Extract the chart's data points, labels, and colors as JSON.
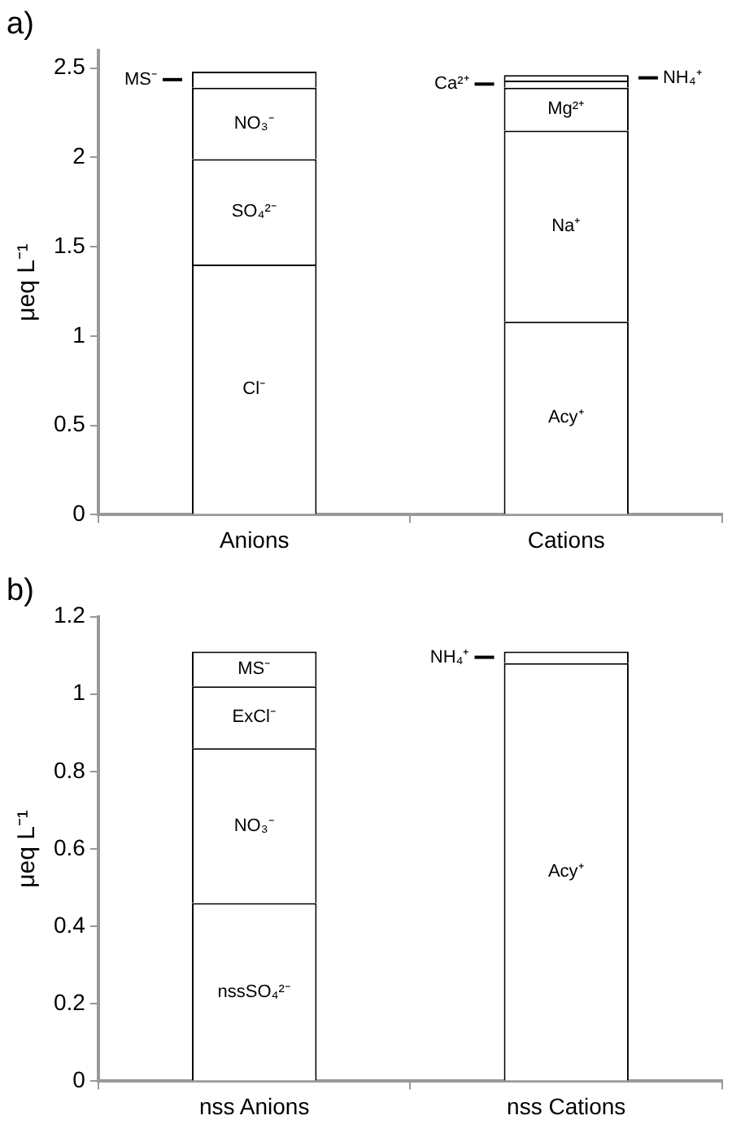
{
  "chart_data": [
    {
      "type": "bar",
      "title": "a)",
      "ylabel": "μeq L⁻¹",
      "categories": [
        "Anions",
        "Cations"
      ],
      "stacked": true,
      "legend": false,
      "grid": false,
      "ylim": [
        0,
        2.6
      ],
      "yticks": [
        0,
        0.5,
        1,
        1.5,
        2,
        2.5
      ],
      "series": [
        {
          "name": "Cl⁻",
          "color": "#ffffff",
          "values": [
            1.4,
            null
          ]
        },
        {
          "name": "SO₄²⁻",
          "color": "#ffffff",
          "values": [
            0.59,
            null
          ]
        },
        {
          "name": "NO₃⁻",
          "color": "#ffffff",
          "values": [
            0.4,
            null
          ]
        },
        {
          "name": "MS⁻",
          "color": "#ffffff",
          "values": [
            0.09,
            null
          ]
        },
        {
          "name": "Acy⁺",
          "color": "#ffffff",
          "values": [
            null,
            1.08
          ]
        },
        {
          "name": "Na⁺",
          "color": "#ffffff",
          "values": [
            null,
            1.07
          ]
        },
        {
          "name": "Mg²⁺",
          "color": "#ffffff",
          "values": [
            null,
            0.24
          ]
        },
        {
          "name": "Ca²⁺",
          "color": "#ffffff",
          "values": [
            null,
            0.04
          ]
        },
        {
          "name": "NH₄⁺",
          "color": "#ffffff",
          "values": [
            null,
            0.03
          ]
        }
      ]
    },
    {
      "type": "bar",
      "title": "b)",
      "ylabel": "μeq L⁻¹",
      "categories": [
        "nss Anions",
        "nss Cations"
      ],
      "stacked": true,
      "legend": false,
      "grid": false,
      "ylim": [
        0,
        1.2
      ],
      "yticks": [
        0,
        0.2,
        0.4,
        0.6,
        0.8,
        1,
        1.2
      ],
      "series": [
        {
          "name": "nssSO₄²⁻",
          "color": "#ffffff",
          "values": [
            0.46,
            null
          ]
        },
        {
          "name": "NO₃⁻",
          "color": "#ffffff",
          "values": [
            0.4,
            null
          ]
        },
        {
          "name": "ExCl⁻",
          "color": "#ffffff",
          "values": [
            0.16,
            null
          ]
        },
        {
          "name": "MS⁻",
          "color": "#ffffff",
          "values": [
            0.09,
            null
          ]
        },
        {
          "name": "Acy⁺",
          "color": "#ffffff",
          "values": [
            null,
            1.08
          ]
        },
        {
          "name": "NH₄⁺",
          "color": "#ffffff",
          "values": [
            null,
            0.03
          ]
        }
      ]
    }
  ]
}
